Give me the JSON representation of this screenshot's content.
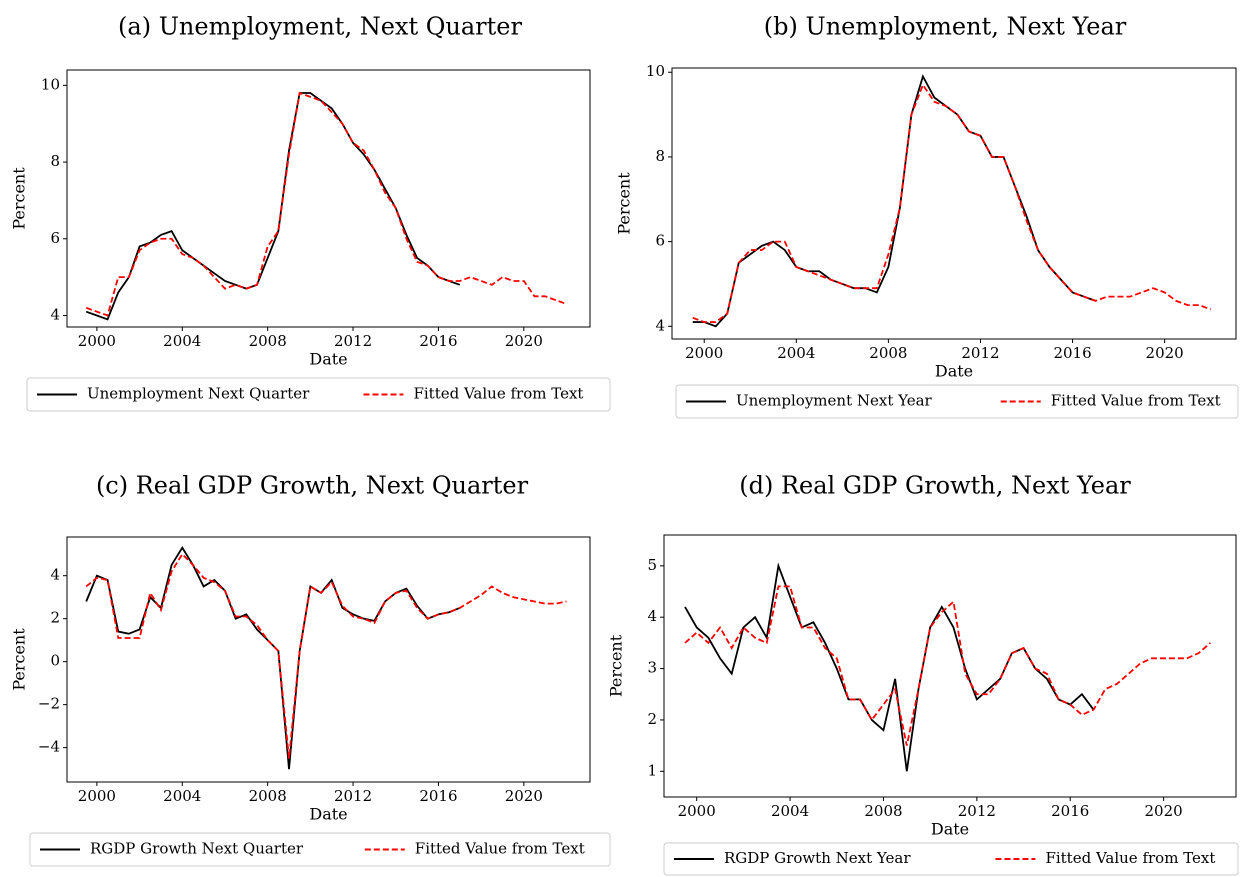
{
  "chart_data": [
    {
      "type": "line",
      "title": "(a) Unemployment, Next Quarter",
      "xlabel": "Date",
      "ylabel": "Percent",
      "x": [
        1999.5,
        2000.0,
        2000.5,
        2001.0,
        2001.5,
        2002.0,
        2002.5,
        2003.0,
        2003.5,
        2004.0,
        2004.5,
        2005.0,
        2005.5,
        2006.0,
        2006.5,
        2007.0,
        2007.5,
        2008.0,
        2008.5,
        2009.0,
        2009.5,
        2010.0,
        2010.5,
        2011.0,
        2011.5,
        2012.0,
        2012.5,
        2013.0,
        2013.5,
        2014.0,
        2014.5,
        2015.0,
        2015.5,
        2016.0,
        2016.5,
        2017.0,
        2017.5,
        2018.0,
        2018.5,
        2019.0,
        2019.5,
        2020.0,
        2020.5,
        2021.0,
        2021.5,
        2022.0
      ],
      "xlim": [
        1998.6,
        2023.1
      ],
      "xticks": [
        2000,
        2004,
        2008,
        2012,
        2016,
        2020
      ],
      "ylim": [
        3.7,
        10.4
      ],
      "yticks": [
        4,
        6,
        8,
        10
      ],
      "series": [
        {
          "name": "Unemployment Next Quarter",
          "color": "#000000",
          "linestyle": "solid",
          "values": [
            4.1,
            4.0,
            3.9,
            4.6,
            5.0,
            5.8,
            5.9,
            6.1,
            6.2,
            5.7,
            5.5,
            5.3,
            5.1,
            4.9,
            4.8,
            4.7,
            4.8,
            5.5,
            6.2,
            8.3,
            9.8,
            9.8,
            9.6,
            9.4,
            9.0,
            8.5,
            8.2,
            7.8,
            7.3,
            6.8,
            6.1,
            5.5,
            5.3,
            5.0,
            4.9,
            4.8,
            null,
            null,
            null,
            null,
            null,
            null,
            null,
            null,
            null,
            null
          ]
        },
        {
          "name": "Fitted Value from Text",
          "color": "#ff0000",
          "linestyle": "dashed",
          "values": [
            4.2,
            4.1,
            4.0,
            5.0,
            5.0,
            5.7,
            5.9,
            6.0,
            6.0,
            5.6,
            5.5,
            5.3,
            5.0,
            4.7,
            4.8,
            4.7,
            4.8,
            5.8,
            6.2,
            8.2,
            9.8,
            9.7,
            9.6,
            9.3,
            9.0,
            8.5,
            8.3,
            7.8,
            7.2,
            6.8,
            6.0,
            5.4,
            5.3,
            5.0,
            4.9,
            4.9,
            5.0,
            4.9,
            4.8,
            5.0,
            4.9,
            4.9,
            4.5,
            4.5,
            4.4,
            4.3
          ]
        }
      ]
    },
    {
      "type": "line",
      "title": "(b) Unemployment, Next Year",
      "xlabel": "Date",
      "ylabel": "Percent",
      "x": [
        1999.5,
        2000.0,
        2000.5,
        2001.0,
        2001.5,
        2002.0,
        2002.5,
        2003.0,
        2003.5,
        2004.0,
        2004.5,
        2005.0,
        2005.5,
        2006.0,
        2006.5,
        2007.0,
        2007.5,
        2008.0,
        2008.5,
        2009.0,
        2009.5,
        2010.0,
        2010.5,
        2011.0,
        2011.5,
        2012.0,
        2012.5,
        2013.0,
        2013.5,
        2014.0,
        2014.5,
        2015.0,
        2015.5,
        2016.0,
        2016.5,
        2017.0,
        2017.5,
        2018.0,
        2018.5,
        2019.0,
        2019.5,
        2020.0,
        2020.5,
        2021.0,
        2021.5,
        2022.0
      ],
      "xlim": [
        1998.6,
        2023.1
      ],
      "xticks": [
        2000,
        2004,
        2008,
        2012,
        2016,
        2020
      ],
      "ylim": [
        3.7,
        10.1
      ],
      "yticks": [
        4,
        6,
        8,
        10
      ],
      "series": [
        {
          "name": "Unemployment Next Year",
          "color": "#000000",
          "linestyle": "solid",
          "values": [
            4.1,
            4.1,
            4.0,
            4.3,
            5.5,
            5.7,
            5.9,
            6.0,
            5.8,
            5.4,
            5.3,
            5.3,
            5.1,
            5.0,
            4.9,
            4.9,
            4.8,
            5.4,
            6.8,
            9.0,
            9.9,
            9.4,
            9.2,
            9.0,
            8.6,
            8.5,
            8.0,
            8.0,
            7.3,
            6.6,
            5.8,
            5.4,
            5.1,
            4.8,
            4.7,
            4.6,
            null,
            null,
            null,
            null,
            null,
            null,
            null,
            null,
            null,
            null
          ]
        },
        {
          "name": "Fitted Value from Text",
          "color": "#ff0000",
          "linestyle": "dashed",
          "values": [
            4.2,
            4.1,
            4.1,
            4.3,
            5.5,
            5.8,
            5.8,
            6.0,
            6.0,
            5.4,
            5.3,
            5.2,
            5.1,
            5.0,
            4.9,
            4.9,
            4.9,
            5.7,
            6.8,
            9.0,
            9.7,
            9.3,
            9.2,
            9.0,
            8.6,
            8.5,
            8.0,
            8.0,
            7.3,
            6.5,
            5.8,
            5.4,
            5.1,
            4.8,
            4.7,
            4.6,
            4.7,
            4.7,
            4.7,
            4.8,
            4.9,
            4.8,
            4.6,
            4.5,
            4.5,
            4.4
          ]
        }
      ]
    },
    {
      "type": "line",
      "title": "(c) Real GDP Growth, Next Quarter",
      "xlabel": "Date",
      "ylabel": "Percent",
      "x": [
        1999.5,
        2000.0,
        2000.5,
        2001.0,
        2001.5,
        2002.0,
        2002.5,
        2003.0,
        2003.5,
        2004.0,
        2004.5,
        2005.0,
        2005.5,
        2006.0,
        2006.5,
        2007.0,
        2007.5,
        2008.0,
        2008.5,
        2009.0,
        2009.5,
        2010.0,
        2010.5,
        2011.0,
        2011.5,
        2012.0,
        2012.5,
        2013.0,
        2013.5,
        2014.0,
        2014.5,
        2015.0,
        2015.5,
        2016.0,
        2016.5,
        2017.0,
        2017.5,
        2018.0,
        2018.5,
        2019.0,
        2019.5,
        2020.0,
        2020.5,
        2021.0,
        2021.5,
        2022.0
      ],
      "xlim": [
        1998.6,
        2023.1
      ],
      "xticks": [
        2000,
        2004,
        2008,
        2012,
        2016,
        2020
      ],
      "ylim": [
        -5.6,
        5.8
      ],
      "yticks": [
        {
          "value": -4,
          "label": "−4"
        },
        {
          "value": -2,
          "label": "−2"
        },
        0,
        2,
        4
      ],
      "series": [
        {
          "name": "RGDP Growth Next Quarter",
          "color": "#000000",
          "linestyle": "solid",
          "values": [
            2.8,
            4.0,
            3.8,
            1.4,
            1.3,
            1.5,
            3.0,
            2.5,
            4.5,
            5.3,
            4.5,
            3.5,
            3.8,
            3.3,
            2.0,
            2.2,
            1.5,
            1.0,
            0.5,
            -5.0,
            0.5,
            3.5,
            3.2,
            3.8,
            2.5,
            2.2,
            2.0,
            1.9,
            2.8,
            3.2,
            3.4,
            2.6,
            2.0,
            2.2,
            2.3,
            2.5,
            null,
            null,
            null,
            null,
            null,
            null,
            null,
            null,
            null,
            null
          ]
        },
        {
          "name": "Fitted Value from Text",
          "color": "#ff0000",
          "linestyle": "dashed",
          "values": [
            3.5,
            3.9,
            3.8,
            1.1,
            1.1,
            1.1,
            3.2,
            2.4,
            4.2,
            5.0,
            4.5,
            3.9,
            3.7,
            3.3,
            2.1,
            2.1,
            1.7,
            1.0,
            0.5,
            -4.5,
            0.5,
            3.5,
            3.2,
            3.7,
            2.6,
            2.1,
            2.0,
            1.8,
            2.8,
            3.2,
            3.3,
            2.5,
            2.0,
            2.2,
            2.3,
            2.5,
            2.8,
            3.1,
            3.5,
            3.2,
            3.0,
            2.9,
            2.8,
            2.7,
            2.7,
            2.8
          ]
        }
      ]
    },
    {
      "type": "line",
      "title": "(d) Real GDP Growth, Next Year",
      "xlabel": "Date",
      "ylabel": "Percent",
      "x": [
        1999.5,
        2000.0,
        2000.5,
        2001.0,
        2001.5,
        2002.0,
        2002.5,
        2003.0,
        2003.5,
        2004.0,
        2004.5,
        2005.0,
        2005.5,
        2006.0,
        2006.5,
        2007.0,
        2007.5,
        2008.0,
        2008.5,
        2009.0,
        2009.5,
        2010.0,
        2010.5,
        2011.0,
        2011.5,
        2012.0,
        2012.5,
        2013.0,
        2013.5,
        2014.0,
        2014.5,
        2015.0,
        2015.5,
        2016.0,
        2016.5,
        2017.0,
        2017.5,
        2018.0,
        2018.5,
        2019.0,
        2019.5,
        2020.0,
        2020.5,
        2021.0,
        2021.5,
        2022.0
      ],
      "xlim": [
        1998.6,
        2023.1
      ],
      "xticks": [
        2000,
        2004,
        2008,
        2012,
        2016,
        2020
      ],
      "ylim": [
        0.5,
        5.6
      ],
      "yticks": [
        1,
        2,
        3,
        4,
        5
      ],
      "series": [
        {
          "name": "RGDP Growth Next Year",
          "color": "#000000",
          "linestyle": "solid",
          "values": [
            4.2,
            3.8,
            3.6,
            3.2,
            2.9,
            3.8,
            4.0,
            3.6,
            5.0,
            4.4,
            3.8,
            3.9,
            3.5,
            3.0,
            2.4,
            2.4,
            2.0,
            1.8,
            2.8,
            1.0,
            2.6,
            3.8,
            4.2,
            3.8,
            3.0,
            2.4,
            2.6,
            2.8,
            3.3,
            3.4,
            3.0,
            2.8,
            2.4,
            2.3,
            2.5,
            2.2,
            null,
            null,
            null,
            null,
            null,
            null,
            null,
            null,
            null,
            null
          ]
        },
        {
          "name": "Fitted Value from Text",
          "color": "#ff0000",
          "linestyle": "dashed",
          "values": [
            3.5,
            3.7,
            3.5,
            3.8,
            3.4,
            3.8,
            3.6,
            3.5,
            4.6,
            4.6,
            3.8,
            3.8,
            3.4,
            3.2,
            2.4,
            2.4,
            2.0,
            2.3,
            2.6,
            1.5,
            2.6,
            3.8,
            4.1,
            4.3,
            2.9,
            2.5,
            2.5,
            2.8,
            3.3,
            3.4,
            3.0,
            2.9,
            2.4,
            2.3,
            2.1,
            2.2,
            2.6,
            2.7,
            2.9,
            3.1,
            3.2,
            3.2,
            3.2,
            3.2,
            3.3,
            3.5
          ]
        }
      ]
    }
  ]
}
